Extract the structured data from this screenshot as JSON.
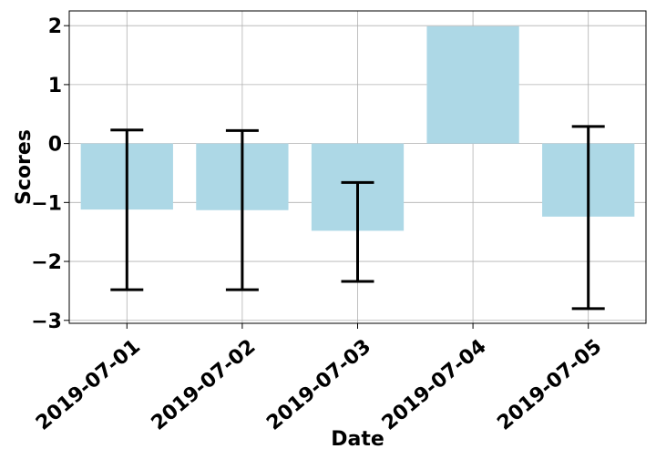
{
  "chart_data": {
    "type": "bar",
    "title": "",
    "xlabel": "Date",
    "ylabel": "Scores",
    "categories": [
      "2019-07-01",
      "2019-07-02",
      "2019-07-03",
      "2019-07-04",
      "2019-07-05"
    ],
    "values": [
      -1.12,
      -1.13,
      -1.48,
      1.99,
      -1.24
    ],
    "error_low": [
      -2.48,
      -2.48,
      -2.34,
      null,
      -2.8
    ],
    "error_high": [
      0.23,
      0.22,
      -0.66,
      null,
      0.29
    ],
    "ylim": [
      -3.05,
      2.25
    ],
    "yticks": [
      -3,
      -2,
      -1,
      0,
      1,
      2
    ],
    "ytick_labels": [
      "−3",
      "−2",
      "−1",
      "0",
      "1",
      "2"
    ],
    "grid": true,
    "colors": {
      "bar": "#add8e6",
      "errorbar": "#000000",
      "grid": "#b0b0b0"
    }
  }
}
